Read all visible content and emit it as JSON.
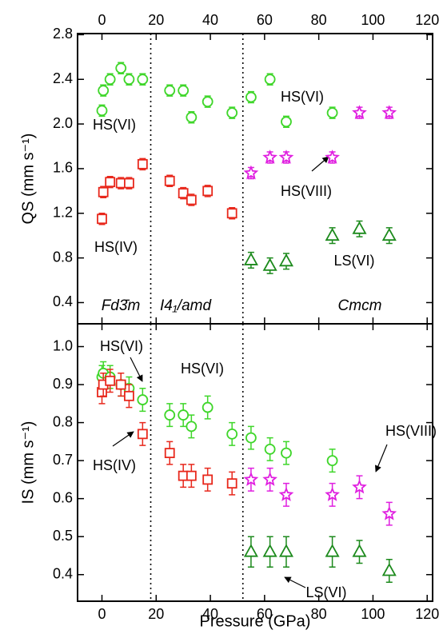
{
  "chart_data": [
    {
      "type": "scatter",
      "ylabel": "QS (mm s⁻¹)",
      "xlim": [
        -9,
        122
      ],
      "xticks": [
        0,
        20,
        40,
        60,
        80,
        100,
        120
      ],
      "ylim": [
        0.21,
        2.81
      ],
      "yticks": [
        0.4,
        0.8,
        1.2,
        1.6,
        {
          "value": 2,
          "label": "2.0"
        },
        2.4,
        2.8
      ],
      "phase_boundaries": [
        18,
        52
      ],
      "annotations": [
        "HS(VI)",
        "HS(IV)",
        "HS(VI)",
        "HS(VIII)",
        "LS(VI)",
        "Fd3̄m",
        "I4₁/amd",
        "Cmcm"
      ],
      "series": [
        {
          "marker": "circle",
          "color": "#3fd62a",
          "x": [
            0,
            0.5,
            3,
            7,
            10,
            15,
            25,
            30,
            33,
            39,
            48,
            55,
            62,
            68,
            85
          ],
          "values": [
            2.12,
            2.3,
            2.4,
            2.5,
            2.4,
            2.4,
            2.3,
            2.3,
            2.06,
            2.2,
            2.1,
            2.24,
            2.4,
            2.02,
            2.1
          ],
          "errors": [
            0.05,
            0.05,
            0.05,
            0.05,
            0.05,
            0.05,
            0.05,
            0.05,
            0.05,
            0.05,
            0.05,
            0.05,
            0.05,
            0.05,
            0.05
          ]
        },
        {
          "marker": "square",
          "color": "#e8281c",
          "x": [
            0,
            0.5,
            3,
            7,
            10,
            15,
            25,
            30,
            33,
            39,
            48
          ],
          "values": [
            1.15,
            1.39,
            1.48,
            1.47,
            1.47,
            1.64,
            1.49,
            1.38,
            1.32,
            1.4,
            1.2
          ],
          "errors": [
            0.05,
            0.05,
            0.05,
            0.05,
            0.05,
            0.05,
            0.05,
            0.05,
            0.05,
            0.05,
            0.05
          ]
        },
        {
          "marker": "star",
          "color": "#e020e0",
          "x": [
            55,
            62,
            68,
            85,
            95,
            106
          ],
          "values": [
            1.56,
            1.7,
            1.7,
            1.7,
            2.1,
            2.1
          ],
          "errors": [
            0.05,
            0.05,
            0.05,
            0.05,
            0.05,
            0.05
          ]
        },
        {
          "marker": "triangle",
          "color": "#1c8a1c",
          "x": [
            55,
            62,
            68,
            85,
            95,
            106
          ],
          "values": [
            0.78,
            0.73,
            0.77,
            1.0,
            1.06,
            1.0
          ],
          "errors": [
            0.07,
            0.07,
            0.07,
            0.07,
            0.07,
            0.07
          ]
        }
      ]
    },
    {
      "type": "scatter",
      "xlabel": "Pressure (GPa)",
      "ylabel": "IS (mm s⁻¹)",
      "xlim": [
        -9,
        122
      ],
      "xticks": [
        0,
        20,
        40,
        60,
        80,
        100,
        120
      ],
      "ylim": [
        0.33,
        1.06
      ],
      "yticks": [
        0.4,
        0.5,
        0.6,
        0.7,
        0.8,
        0.9,
        {
          "value": 1,
          "label": "1.0"
        }
      ],
      "phase_boundaries": [
        18,
        52
      ],
      "annotations": [
        "HS(VI)",
        "HS(VI)",
        "HS(IV)",
        "HS(VIII)",
        "LS(VI)"
      ],
      "series": [
        {
          "marker": "circle",
          "color": "#3fd62a",
          "x": [
            0,
            0.5,
            3,
            7,
            10,
            15,
            25,
            30,
            33,
            39,
            48,
            55,
            62,
            68,
            85
          ],
          "values": [
            0.92,
            0.93,
            0.92,
            0.9,
            0.89,
            0.86,
            0.82,
            0.82,
            0.79,
            0.84,
            0.77,
            0.76,
            0.73,
            0.72,
            0.7
          ],
          "errors": [
            0.03,
            0.03,
            0.03,
            0.03,
            0.03,
            0.03,
            0.03,
            0.03,
            0.03,
            0.03,
            0.03,
            0.03,
            0.03,
            0.03,
            0.03
          ]
        },
        {
          "marker": "square",
          "color": "#e8281c",
          "x": [
            0,
            0.5,
            3,
            7,
            10,
            15,
            25,
            30,
            33,
            39,
            48
          ],
          "values": [
            0.88,
            0.9,
            0.91,
            0.9,
            0.87,
            0.77,
            0.72,
            0.66,
            0.66,
            0.65,
            0.64
          ],
          "errors": [
            0.03,
            0.03,
            0.03,
            0.03,
            0.03,
            0.03,
            0.03,
            0.03,
            0.03,
            0.03,
            0.03
          ]
        },
        {
          "marker": "star",
          "color": "#e020e0",
          "x": [
            55,
            62,
            68,
            85,
            95,
            106
          ],
          "values": [
            0.65,
            0.65,
            0.61,
            0.61,
            0.63,
            0.56
          ],
          "errors": [
            0.03,
            0.03,
            0.03,
            0.03,
            0.03,
            0.03
          ]
        },
        {
          "marker": "triangle",
          "color": "#1c8a1c",
          "x": [
            55,
            62,
            68,
            85,
            95,
            106
          ],
          "values": [
            0.46,
            0.46,
            0.46,
            0.46,
            0.46,
            0.41
          ],
          "errors": [
            0.04,
            0.04,
            0.04,
            0.04,
            0.03,
            0.03
          ]
        }
      ]
    }
  ]
}
